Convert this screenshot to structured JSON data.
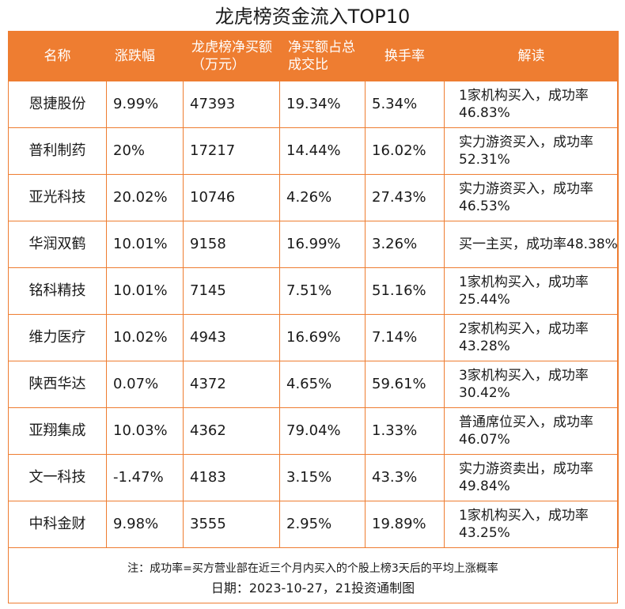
{
  "title": "龙虎榜资金流入TOP10",
  "headers": [
    "名称",
    "涨跌幅",
    "龙虎榜净买额（万元）",
    "净买额占总成交比",
    "换手率",
    "解读"
  ],
  "rows": [
    {
      "name": "恩捷股份",
      "change": "9.99%",
      "net_buy": "47393",
      "ratio": "19.34%",
      "turnover": "5.34%",
      "note": "1家机构买入，成功率46.83%"
    },
    {
      "name": "普利制药",
      "change": "20%",
      "net_buy": "17217",
      "ratio": "14.44%",
      "turnover": "16.02%",
      "note": "实力游资买入，成功率52.31%"
    },
    {
      "name": "亚光科技",
      "change": "20.02%",
      "net_buy": "10746",
      "ratio": "4.26%",
      "turnover": "27.43%",
      "note": "实力游资买入，成功率46.53%"
    },
    {
      "name": "华润双鹤",
      "change": "10.01%",
      "net_buy": "9158",
      "ratio": "16.99%",
      "turnover": "3.26%",
      "note": "买一主买，成功率48.38%"
    },
    {
      "name": "铭科精技",
      "change": "10.01%",
      "net_buy": "7145",
      "ratio": "7.51%",
      "turnover": "51.16%",
      "note": "1家机构买入，成功率25.44%"
    },
    {
      "name": "维力医疗",
      "change": "10.02%",
      "net_buy": "4943",
      "ratio": "16.69%",
      "turnover": "7.14%",
      "note": "2家机构买入，成功率43.28%"
    },
    {
      "name": "陕西华达",
      "change": "0.07%",
      "net_buy": "4372",
      "ratio": "4.65%",
      "turnover": "59.61%",
      "note": "3家机构买入，成功率30.42%"
    },
    {
      "name": "亚翔集成",
      "change": "10.03%",
      "net_buy": "4362",
      "ratio": "79.04%",
      "turnover": "1.33%",
      "note": "普通席位买入，成功率46.07%"
    },
    {
      "name": "文一科技",
      "change": "-1.47%",
      "net_buy": "4183",
      "ratio": "3.15%",
      "turnover": "43.3%",
      "note": "实力游资卖出，成功率49.84%"
    },
    {
      "name": "中科金财",
      "change": "9.98%",
      "net_buy": "3555",
      "ratio": "2.95%",
      "turnover": "19.89%",
      "note": "1家机构买入，成功率43.25%"
    }
  ],
  "footnote": "注：成功率=买方营业部在近三个月内买入的个股上榜3天后的平均上涨概率",
  "date_source": "日期：2023-10-27，21投资通制图",
  "colors": {
    "accent": "#ee7d31",
    "header_text": "#ffffff"
  }
}
